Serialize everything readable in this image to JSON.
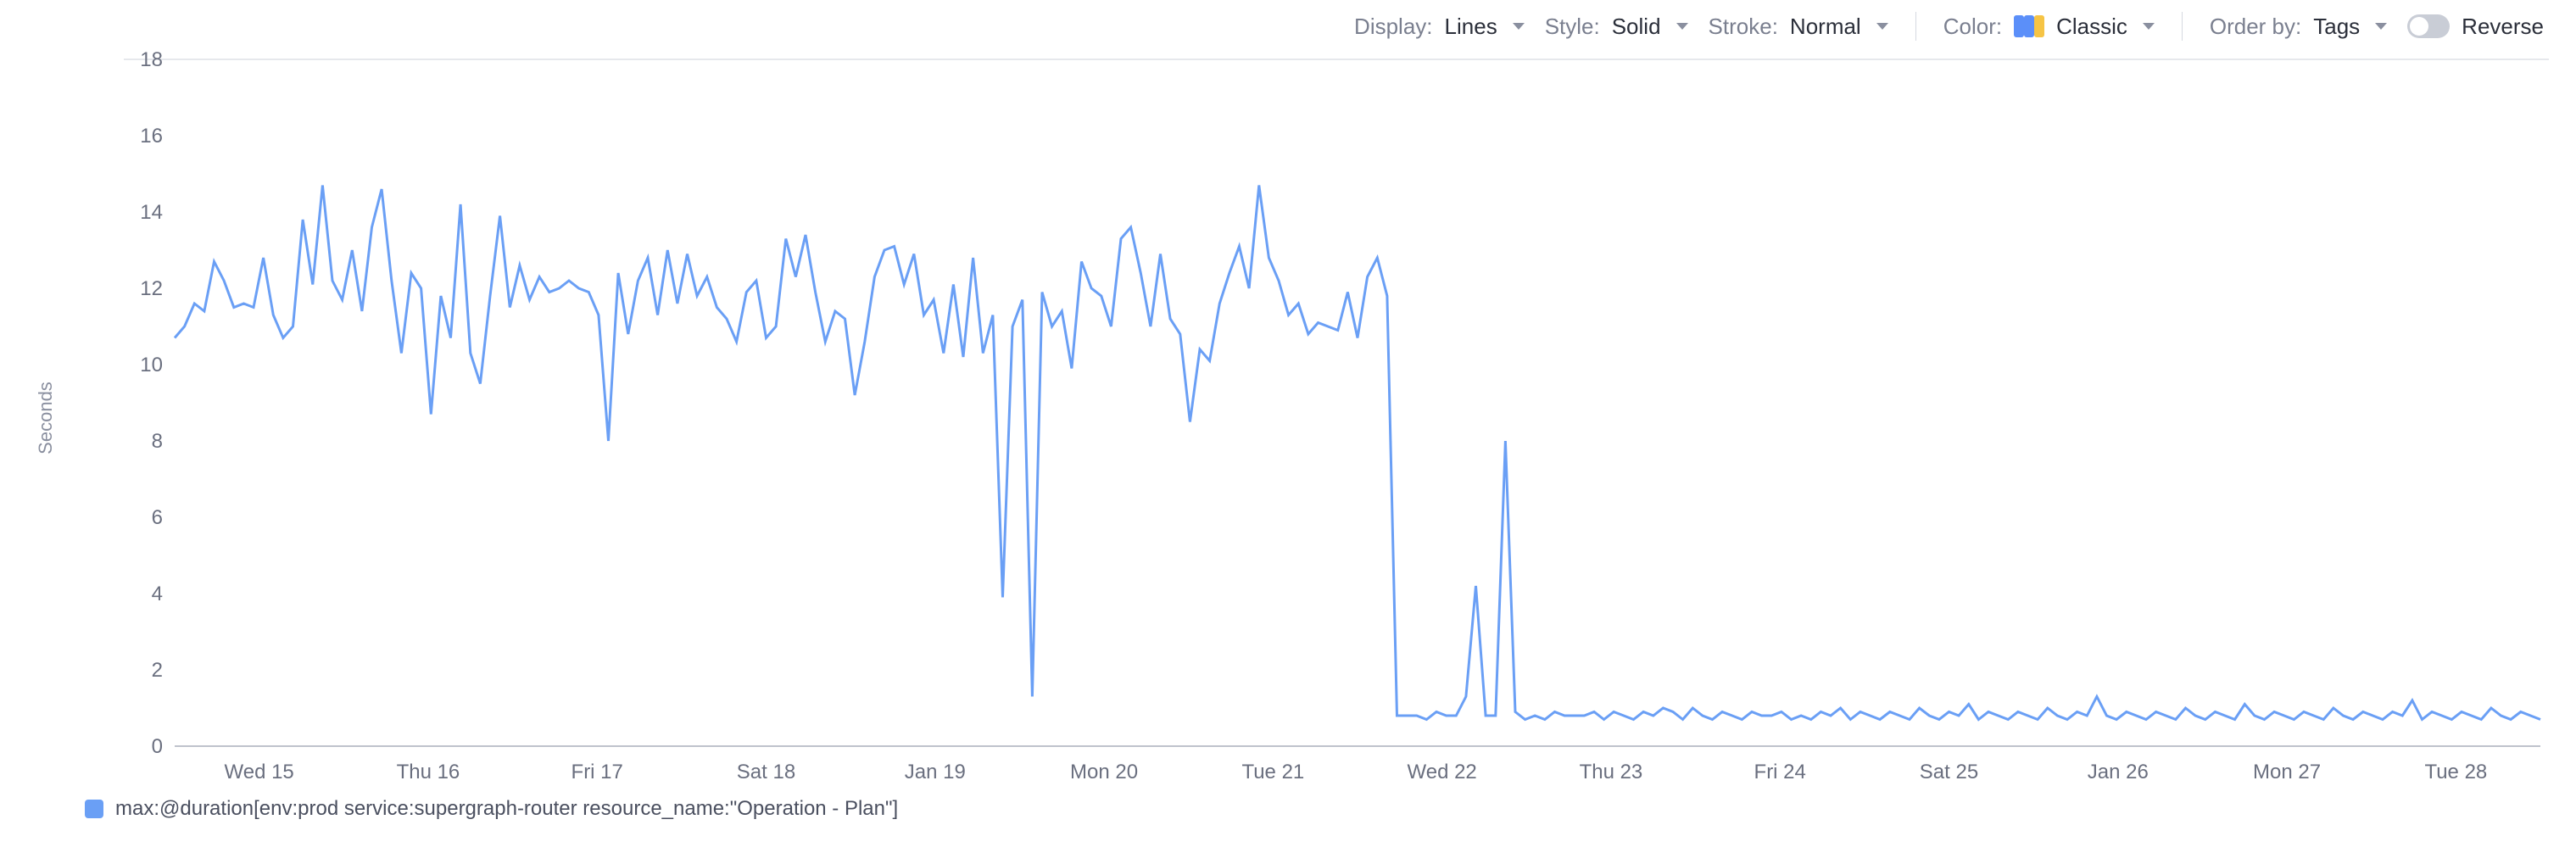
{
  "toolbar": {
    "display": {
      "label": "Display:",
      "value": "Lines"
    },
    "style": {
      "label": "Style:",
      "value": "Solid"
    },
    "stroke": {
      "label": "Stroke:",
      "value": "Normal"
    },
    "color": {
      "label": "Color:",
      "value": "Classic",
      "swatches": [
        "#5b8ff9",
        "#5b8ff9",
        "#f6c445"
      ]
    },
    "orderby": {
      "label": "Order by:",
      "value": "Tags"
    },
    "reverse": {
      "label": "Reverse",
      "on": false
    }
  },
  "chart": {
    "type": "line",
    "y_axis_title": "Seconds",
    "line_color": "#6a9ff5",
    "line_width": 3,
    "background_color": "#ffffff",
    "grid_top_color": "#e6e8ec",
    "baseline_color": "#bfc3cc",
    "ylim": [
      0,
      18
    ],
    "yticks": [
      0,
      2,
      4,
      6,
      8,
      10,
      12,
      14,
      16,
      18
    ],
    "x_domain": [
      0,
      14
    ],
    "xticks": [
      {
        "pos": 0.5,
        "label": "Wed 15"
      },
      {
        "pos": 1.5,
        "label": "Thu 16"
      },
      {
        "pos": 2.5,
        "label": "Fri 17"
      },
      {
        "pos": 3.5,
        "label": "Sat 18"
      },
      {
        "pos": 4.5,
        "label": "Jan 19"
      },
      {
        "pos": 5.5,
        "label": "Mon 20"
      },
      {
        "pos": 6.5,
        "label": "Tue 21"
      },
      {
        "pos": 7.5,
        "label": "Wed 22"
      },
      {
        "pos": 8.5,
        "label": "Thu 23"
      },
      {
        "pos": 9.5,
        "label": "Fri 24"
      },
      {
        "pos": 10.5,
        "label": "Sat 25"
      },
      {
        "pos": 11.5,
        "label": "Jan 26"
      },
      {
        "pos": 12.5,
        "label": "Mon 27"
      },
      {
        "pos": 13.5,
        "label": "Tue 28"
      }
    ],
    "series": [
      {
        "name": "max_duration",
        "legend_label": "max:@duration[env:prod service:supergraph-router resource_name:\"Operation - Plan\"]",
        "color": "#6a9ff5",
        "data": [
          10.7,
          11.0,
          11.6,
          11.4,
          12.7,
          12.2,
          11.5,
          11.6,
          11.5,
          12.8,
          11.3,
          10.7,
          11.0,
          13.8,
          12.1,
          14.7,
          12.2,
          11.7,
          13.0,
          11.4,
          13.6,
          14.6,
          12.2,
          10.3,
          12.4,
          12.0,
          8.7,
          11.8,
          10.7,
          14.2,
          10.3,
          9.5,
          11.8,
          13.9,
          11.5,
          12.6,
          11.7,
          12.3,
          11.9,
          12.0,
          12.2,
          12.0,
          11.9,
          11.3,
          8.0,
          12.4,
          10.8,
          12.2,
          12.8,
          11.3,
          13.0,
          11.6,
          12.9,
          11.8,
          12.3,
          11.5,
          11.2,
          10.6,
          11.9,
          12.2,
          10.7,
          11.0,
          13.3,
          12.3,
          13.4,
          11.9,
          10.6,
          11.4,
          11.2,
          9.2,
          10.6,
          12.3,
          13.0,
          13.1,
          12.1,
          12.9,
          11.3,
          11.7,
          10.3,
          12.1,
          10.2,
          12.8,
          10.3,
          11.3,
          3.9,
          11.0,
          11.7,
          1.3,
          11.9,
          11.0,
          11.4,
          9.9,
          12.7,
          12.0,
          11.8,
          11.0,
          13.3,
          13.6,
          12.4,
          11.0,
          12.9,
          11.2,
          10.8,
          8.5,
          10.4,
          10.1,
          11.6,
          12.4,
          13.1,
          12.0,
          14.7,
          12.8,
          12.2,
          11.3,
          11.6,
          10.8,
          11.1,
          11.0,
          10.9,
          11.9,
          10.7,
          12.3,
          12.8,
          11.8,
          0.8,
          0.8,
          0.8,
          0.7,
          0.9,
          0.8,
          0.8,
          1.3,
          4.2,
          0.8,
          0.8,
          8.0,
          0.9,
          0.7,
          0.8,
          0.7,
          0.9,
          0.8,
          0.8,
          0.8,
          0.9,
          0.7,
          0.9,
          0.8,
          0.7,
          0.9,
          0.8,
          1.0,
          0.9,
          0.7,
          1.0,
          0.8,
          0.7,
          0.9,
          0.8,
          0.7,
          0.9,
          0.8,
          0.8,
          0.9,
          0.7,
          0.8,
          0.7,
          0.9,
          0.8,
          1.0,
          0.7,
          0.9,
          0.8,
          0.7,
          0.9,
          0.8,
          0.7,
          1.0,
          0.8,
          0.7,
          0.9,
          0.8,
          1.1,
          0.7,
          0.9,
          0.8,
          0.7,
          0.9,
          0.8,
          0.7,
          1.0,
          0.8,
          0.7,
          0.9,
          0.8,
          1.3,
          0.8,
          0.7,
          0.9,
          0.8,
          0.7,
          0.9,
          0.8,
          0.7,
          1.0,
          0.8,
          0.7,
          0.9,
          0.8,
          0.7,
          1.1,
          0.8,
          0.7,
          0.9,
          0.8,
          0.7,
          0.9,
          0.8,
          0.7,
          1.0,
          0.8,
          0.7,
          0.9,
          0.8,
          0.7,
          0.9,
          0.8,
          1.2,
          0.7,
          0.9,
          0.8,
          0.7,
          0.9,
          0.8,
          0.7,
          1.0,
          0.8,
          0.7,
          0.9,
          0.8,
          0.7
        ]
      }
    ]
  },
  "legend": {
    "items": [
      {
        "color": "#6a9ff5",
        "label": "max:@duration[env:prod service:supergraph-router resource_name:\"Operation - Plan\"]"
      }
    ]
  }
}
